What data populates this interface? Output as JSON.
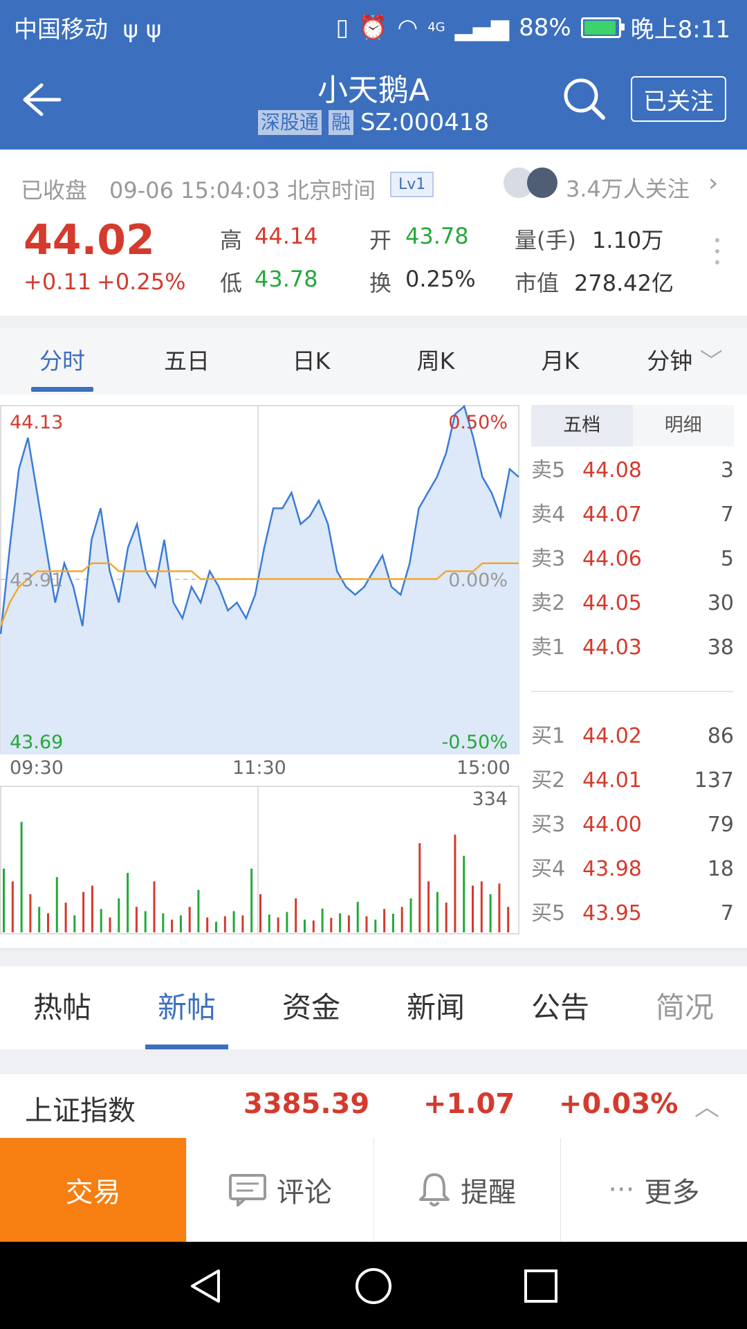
{
  "status_bar": {
    "carrier": "中国移动",
    "network": "4G",
    "battery": "88%",
    "battery_level": 0.88,
    "time": "晚上8:11"
  },
  "header": {
    "title": "小天鹅A",
    "tag1": "深股通",
    "tag2": "融",
    "code": "SZ:000418",
    "follow_label": "已关注"
  },
  "quote": {
    "status": "已收盘",
    "datetime": "09-06 15:04:03 北京时间",
    "level": "Lv1",
    "followers": "3.4万人关注",
    "price": "44.02",
    "change": "+0.11",
    "change_pct": "+0.25%",
    "high_label": "高",
    "high": "44.14",
    "low_label": "低",
    "low": "43.78",
    "open_label": "开",
    "open": "43.78",
    "turnover_label": "换",
    "turnover": "0.25%",
    "volume_label": "量(手)",
    "volume": "1.10万",
    "mktcap_label": "市值",
    "mktcap": "278.42亿"
  },
  "chart_tabs": [
    "分时",
    "五日",
    "日K",
    "周K",
    "月K",
    "分钟"
  ],
  "chart_data": {
    "type": "line",
    "y_max_label": "44.13",
    "y_mid_label": "43.91",
    "y_min_label": "43.69",
    "pct_max_label": "0.50%",
    "pct_mid_label": "0.00%",
    "pct_min_label": "-0.50%",
    "x_labels": [
      "09:30",
      "11:30",
      "15:00"
    ],
    "ylim": [
      43.69,
      44.13
    ],
    "price": [
      43.84,
      43.95,
      44.05,
      44.09,
      44.02,
      43.95,
      43.88,
      43.93,
      43.9,
      43.85,
      43.96,
      44.0,
      43.92,
      43.88,
      43.95,
      43.98,
      43.92,
      43.9,
      43.96,
      43.88,
      43.86,
      43.9,
      43.88,
      43.92,
      43.9,
      43.87,
      43.88,
      43.86,
      43.89,
      43.95,
      44.0,
      44.0,
      44.02,
      43.98,
      43.99,
      44.01,
      43.98,
      43.92,
      43.9,
      43.89,
      43.9,
      43.92,
      43.94,
      43.9,
      43.89,
      43.93,
      44.0,
      44.02,
      44.04,
      44.07,
      44.12,
      44.13,
      44.09,
      44.04,
      44.02,
      43.99,
      44.05,
      44.04
    ],
    "avg": [
      43.85,
      43.88,
      43.9,
      43.91,
      43.92,
      43.92,
      43.92,
      43.92,
      43.92,
      43.92,
      43.93,
      43.93,
      43.93,
      43.92,
      43.92,
      43.92,
      43.92,
      43.92,
      43.92,
      43.92,
      43.92,
      43.92,
      43.91,
      43.91,
      43.91,
      43.91,
      43.91,
      43.91,
      43.91,
      43.91,
      43.91,
      43.91,
      43.91,
      43.91,
      43.91,
      43.91,
      43.91,
      43.91,
      43.91,
      43.91,
      43.91,
      43.91,
      43.91,
      43.91,
      43.91,
      43.91,
      43.91,
      43.91,
      43.91,
      43.92,
      43.92,
      43.92,
      43.92,
      43.93,
      43.93,
      43.93,
      43.93,
      43.93
    ],
    "vol_max_label": "334",
    "vol_max": 334,
    "volume": [
      150,
      120,
      260,
      90,
      60,
      45,
      130,
      70,
      40,
      95,
      110,
      55,
      35,
      80,
      140,
      60,
      50,
      120,
      45,
      30,
      40,
      60,
      100,
      35,
      25,
      38,
      50,
      40,
      150,
      90,
      42,
      35,
      48,
      80,
      30,
      28,
      56,
      34,
      45,
      40,
      72,
      38,
      30,
      55,
      44,
      60,
      80,
      210,
      120,
      95,
      70,
      230,
      180,
      110,
      120,
      90,
      115,
      60
    ],
    "volume_colors": [
      "g",
      "r",
      "g",
      "r",
      "g",
      "r",
      "g",
      "r",
      "g",
      "r",
      "r",
      "g",
      "r",
      "g",
      "g",
      "r",
      "g",
      "r",
      "g",
      "r",
      "g",
      "r",
      "g",
      "r",
      "g",
      "r",
      "g",
      "r",
      "g",
      "r",
      "g",
      "r",
      "g",
      "r",
      "g",
      "r",
      "g",
      "r",
      "g",
      "r",
      "g",
      "r",
      "g",
      "r",
      "g",
      "r",
      "g",
      "r",
      "r",
      "g",
      "r",
      "r",
      "g",
      "r",
      "r",
      "g",
      "r",
      "r"
    ]
  },
  "order_book": {
    "tabs": [
      "五档",
      "明细"
    ],
    "sell": [
      {
        "label": "卖5",
        "price": "44.08",
        "qty": "3"
      },
      {
        "label": "卖4",
        "price": "44.07",
        "qty": "7"
      },
      {
        "label": "卖3",
        "price": "44.06",
        "qty": "5"
      },
      {
        "label": "卖2",
        "price": "44.05",
        "qty": "30"
      },
      {
        "label": "卖1",
        "price": "44.03",
        "qty": "38"
      }
    ],
    "buy": [
      {
        "label": "买1",
        "price": "44.02",
        "qty": "86"
      },
      {
        "label": "买2",
        "price": "44.01",
        "qty": "137"
      },
      {
        "label": "买3",
        "price": "44.00",
        "qty": "79"
      },
      {
        "label": "买4",
        "price": "43.98",
        "qty": "18"
      },
      {
        "label": "买5",
        "price": "43.95",
        "qty": "7"
      }
    ]
  },
  "news_tabs": [
    "热帖",
    "新帖",
    "资金",
    "新闻",
    "公告",
    "简况"
  ],
  "index_bar": {
    "name": "上证指数",
    "value": "3385.39",
    "change": "+1.07",
    "change_pct": "+0.03%"
  },
  "actions": {
    "trade": "交易",
    "comment": "评论",
    "alert": "提醒",
    "more": "更多"
  },
  "colors": {
    "brand": "#3c6fbe",
    "up": "#d43a2d",
    "down": "#24a83a",
    "trade": "#f77e10"
  }
}
